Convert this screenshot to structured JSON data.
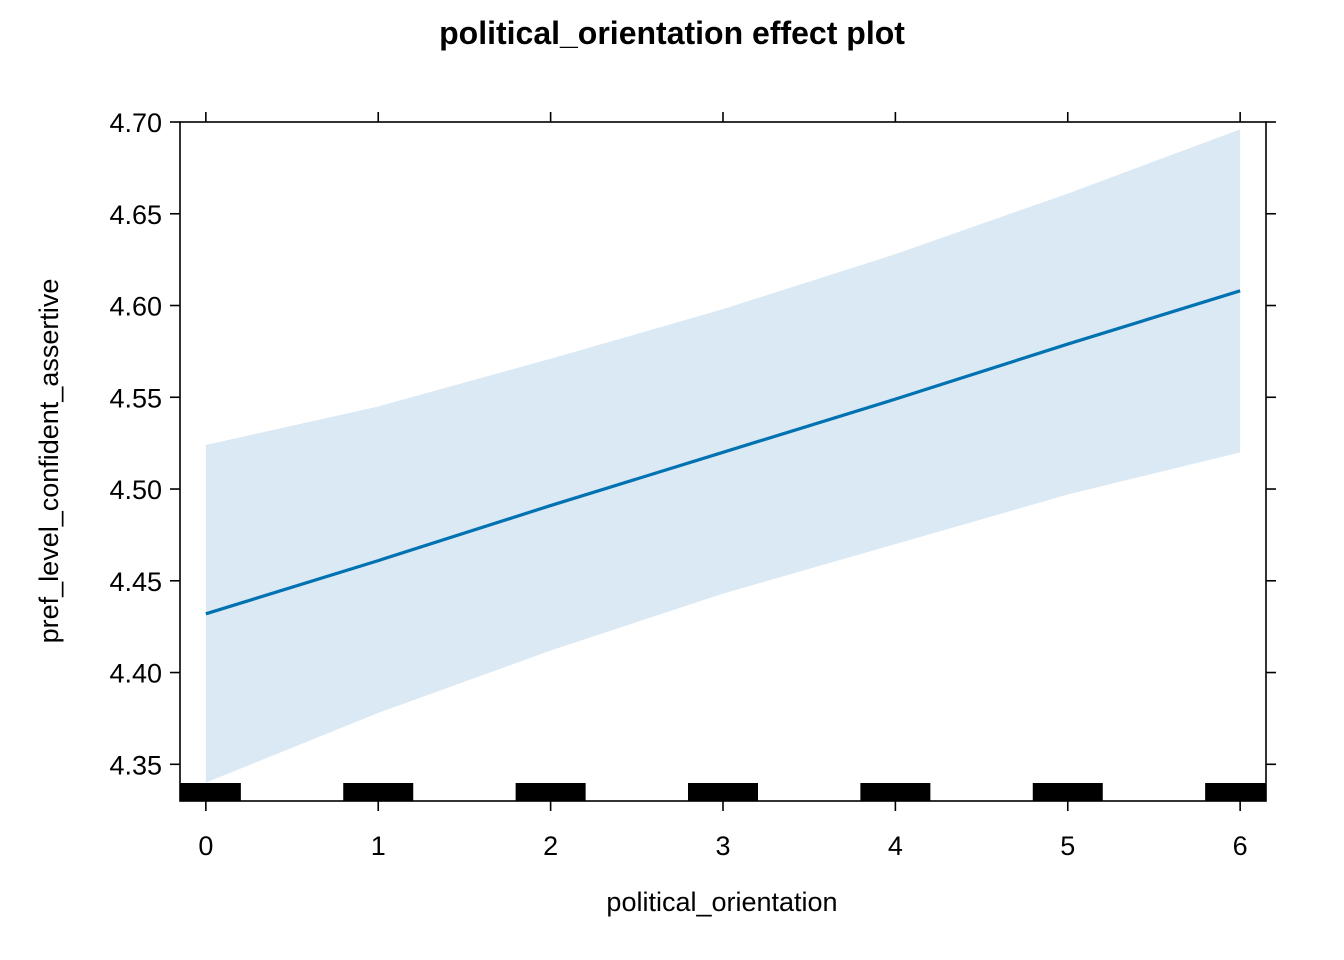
{
  "chart_data": {
    "type": "line",
    "title": "political_orientation effect plot",
    "xlabel": "political_orientation",
    "ylabel": "pref_level_confident_assertive",
    "xlim": [
      -0.15,
      6.15
    ],
    "ylim": [
      4.33,
      4.7
    ],
    "x_ticks": [
      0,
      1,
      2,
      3,
      4,
      5,
      6
    ],
    "y_ticks": [
      4.35,
      4.4,
      4.45,
      4.5,
      4.55,
      4.6,
      4.65,
      4.7
    ],
    "x_tick_labels": [
      "0",
      "1",
      "2",
      "3",
      "4",
      "5",
      "6"
    ],
    "y_tick_labels": [
      "4.35",
      "4.40",
      "4.45",
      "4.50",
      "4.55",
      "4.60",
      "4.65",
      "4.70"
    ],
    "series": [
      {
        "x": [
          0,
          1,
          2,
          3,
          4,
          5,
          6
        ],
        "fit": [
          4.432,
          4.461,
          4.491,
          4.52,
          4.549,
          4.579,
          4.608
        ],
        "lower": [
          4.34,
          4.378,
          4.412,
          4.443,
          4.47,
          4.497,
          4.52
        ],
        "upper": [
          4.524,
          4.545,
          4.571,
          4.598,
          4.628,
          4.661,
          4.696
        ],
        "line_color": "#0072B2",
        "band_color": "#DAE9F4"
      }
    ],
    "rug": [
      0,
      1,
      2,
      3,
      4,
      5,
      6
    ],
    "grid": false
  }
}
